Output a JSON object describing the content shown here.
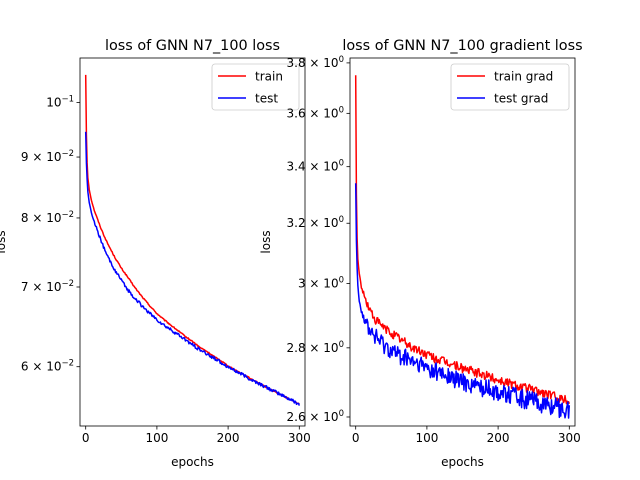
{
  "chart_data": [
    {
      "type": "line",
      "title": "loss of GNN N7_100 loss",
      "xlabel": "epochs",
      "ylabel": "loss",
      "yscale": "log",
      "xlim": [
        -8,
        308
      ],
      "ylim": [
        0.0535,
        0.109
      ],
      "x_ticks": [
        0,
        100,
        200,
        300
      ],
      "x_tick_labels": [
        "0",
        "100",
        "200",
        "300"
      ],
      "y_ticks": [
        0.06,
        0.07,
        0.08,
        0.09,
        0.1
      ],
      "y_tick_labels": [
        {
          "base": "6 × 10",
          "exp": "−2"
        },
        {
          "base": "7 × 10",
          "exp": "−2"
        },
        {
          "base": "8 × 10",
          "exp": "−2"
        },
        {
          "base": "9 × 10",
          "exp": "−2"
        },
        {
          "base": "10",
          "exp": "−1"
        }
      ],
      "legend_position": "top-right",
      "grid": false,
      "series": [
        {
          "name": "train",
          "color": "#ff0000",
          "x": [
            0,
            1,
            2,
            3,
            5,
            8,
            12,
            16,
            20,
            25,
            30,
            40,
            50,
            60,
            70,
            80,
            90,
            100,
            110,
            120,
            130,
            140,
            150,
            160,
            170,
            180,
            190,
            200,
            210,
            220,
            230,
            240,
            250,
            260,
            270,
            280,
            290,
            300
          ],
          "y": [
            0.1055,
            0.094,
            0.089,
            0.0865,
            0.0845,
            0.0828,
            0.0812,
            0.08,
            0.0788,
            0.0775,
            0.0763,
            0.0743,
            0.0726,
            0.0712,
            0.0698,
            0.0686,
            0.0675,
            0.0665,
            0.0657,
            0.065,
            0.0643,
            0.0636,
            0.063,
            0.0623,
            0.0618,
            0.0612,
            0.0607,
            0.0601,
            0.0596,
            0.0592,
            0.0587,
            0.0583,
            0.0578,
            0.0574,
            0.057,
            0.0566,
            0.0562,
            0.0558
          ],
          "noise": 0.0012
        },
        {
          "name": "test",
          "color": "#0000ff",
          "x": [
            0,
            1,
            2,
            3,
            5,
            8,
            12,
            16,
            20,
            25,
            30,
            40,
            50,
            60,
            70,
            80,
            90,
            100,
            110,
            120,
            130,
            140,
            150,
            160,
            170,
            180,
            190,
            200,
            210,
            220,
            230,
            240,
            250,
            260,
            270,
            280,
            290,
            300
          ],
          "y": [
            0.0945,
            0.089,
            0.0862,
            0.0842,
            0.0824,
            0.0808,
            0.0794,
            0.0782,
            0.077,
            0.0756,
            0.0744,
            0.0725,
            0.0709,
            0.0695,
            0.0684,
            0.0674,
            0.0665,
            0.0657,
            0.065,
            0.0644,
            0.0638,
            0.0632,
            0.0626,
            0.062,
            0.0615,
            0.061,
            0.0605,
            0.06,
            0.0595,
            0.0591,
            0.0586,
            0.0582,
            0.0578,
            0.0574,
            0.057,
            0.0566,
            0.0562,
            0.0558
          ],
          "noise": 0.0032
        }
      ]
    },
    {
      "type": "line",
      "title": "loss of GNN N7_100 gradient loss",
      "xlabel": "epochs",
      "ylabel": "loss",
      "yscale": "log",
      "xlim": [
        -8,
        308
      ],
      "ylim": [
        2.575,
        3.82
      ],
      "x_ticks": [
        0,
        100,
        200,
        300
      ],
      "x_tick_labels": [
        "0",
        "100",
        "200",
        "300"
      ],
      "y_ticks": [
        2.6,
        2.8,
        3.0,
        3.2,
        3.4,
        3.6,
        3.8
      ],
      "y_tick_labels": [
        {
          "base": "2.6 × 10",
          "exp": "0"
        },
        {
          "base": "2.8 × 10",
          "exp": "0"
        },
        {
          "base": "3 × 10",
          "exp": "0"
        },
        {
          "base": "3.2 × 10",
          "exp": "0"
        },
        {
          "base": "3.4 × 10",
          "exp": "0"
        },
        {
          "base": "3.6 × 10",
          "exp": "0"
        },
        {
          "base": "3.8 × 10",
          "exp": "0"
        }
      ],
      "legend_position": "top-right",
      "grid": false,
      "series": [
        {
          "name": "train grad",
          "color": "#ff0000",
          "x": [
            0,
            1,
            2,
            3,
            5,
            8,
            12,
            16,
            20,
            25,
            30,
            40,
            50,
            60,
            70,
            80,
            90,
            100,
            110,
            120,
            130,
            140,
            150,
            160,
            170,
            180,
            190,
            200,
            210,
            220,
            230,
            240,
            250,
            260,
            270,
            280,
            290,
            300
          ],
          "y": [
            3.75,
            3.3,
            3.15,
            3.08,
            3.03,
            2.99,
            2.96,
            2.935,
            2.915,
            2.895,
            2.88,
            2.86,
            2.845,
            2.83,
            2.815,
            2.8,
            2.79,
            2.78,
            2.77,
            2.762,
            2.755,
            2.748,
            2.74,
            2.733,
            2.726,
            2.72,
            2.713,
            2.706,
            2.7,
            2.694,
            2.688,
            2.682,
            2.676,
            2.67,
            2.664,
            2.658,
            2.652,
            2.646
          ],
          "noise": 0.005
        },
        {
          "name": "test grad",
          "color": "#0000ff",
          "x": [
            0,
            1,
            2,
            3,
            5,
            8,
            12,
            16,
            20,
            25,
            30,
            40,
            50,
            60,
            70,
            80,
            90,
            100,
            110,
            120,
            130,
            140,
            150,
            160,
            170,
            180,
            190,
            200,
            210,
            220,
            230,
            240,
            250,
            260,
            270,
            280,
            290,
            300
          ],
          "y": [
            3.34,
            3.14,
            3.05,
            2.995,
            2.95,
            2.915,
            2.89,
            2.87,
            2.855,
            2.84,
            2.828,
            2.81,
            2.795,
            2.78,
            2.768,
            2.757,
            2.747,
            2.738,
            2.73,
            2.722,
            2.715,
            2.708,
            2.701,
            2.695,
            2.689,
            2.683,
            2.677,
            2.671,
            2.665,
            2.659,
            2.654,
            2.648,
            2.643,
            2.638,
            2.633,
            2.628,
            2.623,
            2.618
          ],
          "noise": 0.01
        }
      ]
    }
  ]
}
